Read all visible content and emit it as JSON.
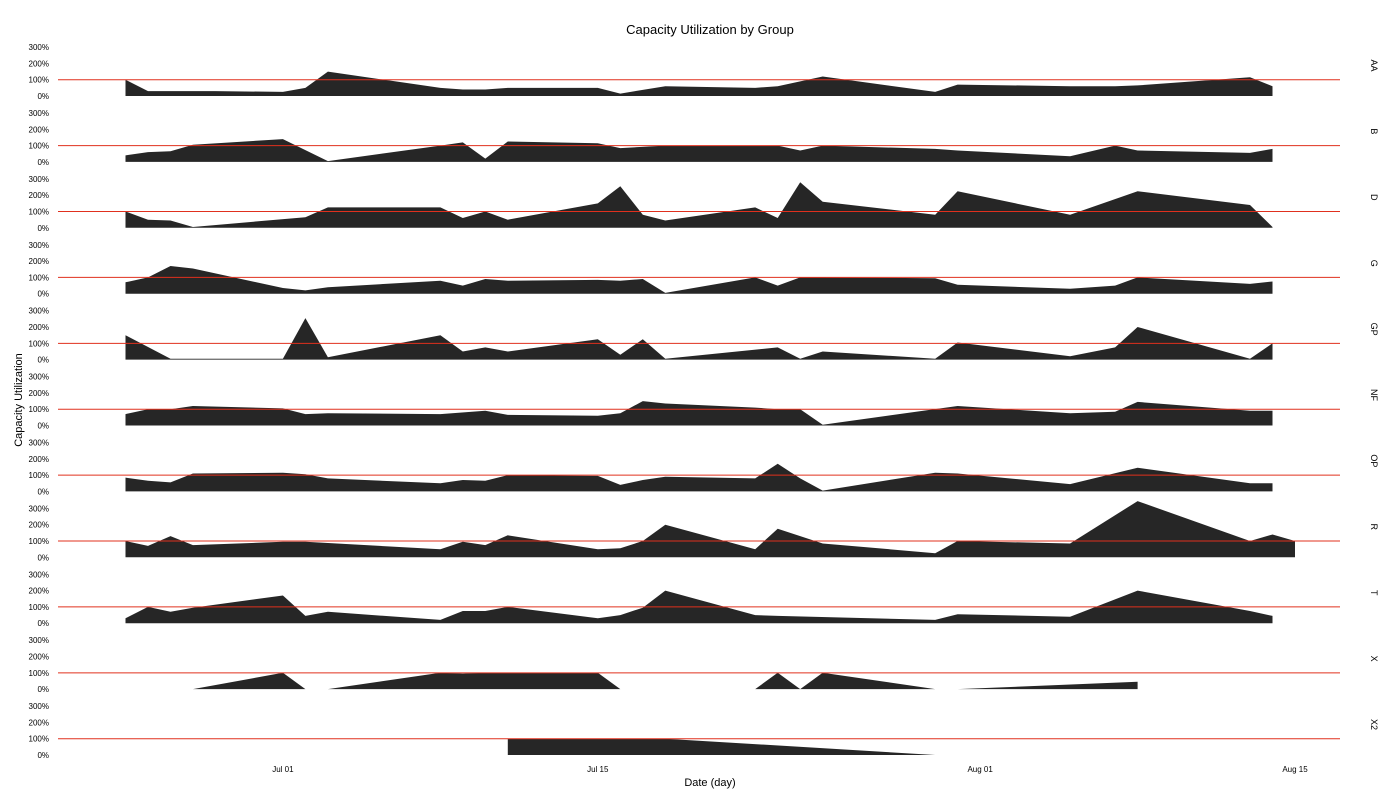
{
  "chart_data": {
    "type": "area",
    "title": "Capacity Utilization by Group",
    "xlabel": "Date (day)",
    "ylabel": "Capacity Utilization",
    "x_range": [
      "2021-06-21",
      "2021-08-17"
    ],
    "ylim": [
      0,
      350
    ],
    "y_ticks": [
      0,
      100,
      200,
      300
    ],
    "y_tick_labels": [
      "0%",
      "100%",
      "200%",
      "300%"
    ],
    "x_ticks": [
      "2021-07-01",
      "2021-07-15",
      "2021-08-01",
      "2021-08-15"
    ],
    "x_tick_labels": [
      "Jul 01",
      "Jul 15",
      "Aug 01",
      "Aug 15"
    ],
    "reference_line": 100,
    "colors": {
      "area": "#262626",
      "reference": "#e0301e"
    },
    "grid": false,
    "panels": [
      {
        "name": "AA",
        "points": [
          [
            "2021-06-24",
            100
          ],
          [
            "2021-06-25",
            30
          ],
          [
            "2021-06-28",
            30
          ],
          [
            "2021-07-01",
            25
          ],
          [
            "2021-07-02",
            50
          ],
          [
            "2021-07-03",
            150
          ],
          [
            "2021-07-08",
            50
          ],
          [
            "2021-07-09",
            40
          ],
          [
            "2021-07-10",
            40
          ],
          [
            "2021-07-11",
            50
          ],
          [
            "2021-07-15",
            50
          ],
          [
            "2021-07-16",
            15
          ],
          [
            "2021-07-18",
            60
          ],
          [
            "2021-07-22",
            50
          ],
          [
            "2021-07-23",
            60
          ],
          [
            "2021-07-25",
            120
          ],
          [
            "2021-07-30",
            25
          ],
          [
            "2021-07-31",
            70
          ],
          [
            "2021-08-05",
            60
          ],
          [
            "2021-08-07",
            60
          ],
          [
            "2021-08-08",
            65
          ],
          [
            "2021-08-13",
            115
          ],
          [
            "2021-08-14",
            60
          ]
        ]
      },
      {
        "name": "B",
        "points": [
          [
            "2021-06-24",
            40
          ],
          [
            "2021-06-25",
            60
          ],
          [
            "2021-06-26",
            65
          ],
          [
            "2021-06-27",
            105
          ],
          [
            "2021-07-01",
            140
          ],
          [
            "2021-07-03",
            5
          ],
          [
            "2021-07-08",
            100
          ],
          [
            "2021-07-09",
            120
          ],
          [
            "2021-07-10",
            20
          ],
          [
            "2021-07-11",
            125
          ],
          [
            "2021-07-15",
            115
          ],
          [
            "2021-07-16",
            85
          ],
          [
            "2021-07-18",
            100
          ],
          [
            "2021-07-23",
            100
          ],
          [
            "2021-07-24",
            70
          ],
          [
            "2021-07-25",
            100
          ],
          [
            "2021-07-30",
            80
          ],
          [
            "2021-07-31",
            70
          ],
          [
            "2021-08-05",
            35
          ],
          [
            "2021-08-07",
            100
          ],
          [
            "2021-08-08",
            70
          ],
          [
            "2021-08-13",
            55
          ],
          [
            "2021-08-14",
            80
          ]
        ]
      },
      {
        "name": "D",
        "points": [
          [
            "2021-06-24",
            100
          ],
          [
            "2021-06-25",
            50
          ],
          [
            "2021-06-26",
            45
          ],
          [
            "2021-06-27",
            5
          ],
          [
            "2021-07-02",
            65
          ],
          [
            "2021-07-03",
            125
          ],
          [
            "2021-07-08",
            125
          ],
          [
            "2021-07-09",
            60
          ],
          [
            "2021-07-10",
            100
          ],
          [
            "2021-07-11",
            50
          ],
          [
            "2021-07-15",
            150
          ],
          [
            "2021-07-16",
            255
          ],
          [
            "2021-07-17",
            80
          ],
          [
            "2021-07-18",
            45
          ],
          [
            "2021-07-22",
            125
          ],
          [
            "2021-07-23",
            60
          ],
          [
            "2021-07-24",
            280
          ],
          [
            "2021-07-25",
            160
          ],
          [
            "2021-07-30",
            80
          ],
          [
            "2021-07-31",
            225
          ],
          [
            "2021-08-05",
            80
          ],
          [
            "2021-08-08",
            225
          ],
          [
            "2021-08-13",
            140
          ],
          [
            "2021-08-14",
            5
          ]
        ]
      },
      {
        "name": "G",
        "points": [
          [
            "2021-06-24",
            70
          ],
          [
            "2021-06-25",
            100
          ],
          [
            "2021-06-26",
            170
          ],
          [
            "2021-06-27",
            155
          ],
          [
            "2021-07-01",
            35
          ],
          [
            "2021-07-02",
            20
          ],
          [
            "2021-07-03",
            40
          ],
          [
            "2021-07-08",
            80
          ],
          [
            "2021-07-09",
            50
          ],
          [
            "2021-07-10",
            90
          ],
          [
            "2021-07-11",
            80
          ],
          [
            "2021-07-15",
            85
          ],
          [
            "2021-07-16",
            80
          ],
          [
            "2021-07-17",
            90
          ],
          [
            "2021-07-18",
            5
          ],
          [
            "2021-07-22",
            100
          ],
          [
            "2021-07-23",
            50
          ],
          [
            "2021-07-24",
            100
          ],
          [
            "2021-07-30",
            95
          ],
          [
            "2021-07-31",
            55
          ],
          [
            "2021-08-05",
            30
          ],
          [
            "2021-08-07",
            50
          ],
          [
            "2021-08-08",
            100
          ],
          [
            "2021-08-13",
            60
          ],
          [
            "2021-08-14",
            75
          ]
        ]
      },
      {
        "name": "GP",
        "points": [
          [
            "2021-06-24",
            150
          ],
          [
            "2021-06-26",
            5
          ],
          [
            "2021-07-01",
            5
          ],
          [
            "2021-07-02",
            255
          ],
          [
            "2021-07-03",
            15
          ],
          [
            "2021-07-08",
            150
          ],
          [
            "2021-07-09",
            50
          ],
          [
            "2021-07-10",
            75
          ],
          [
            "2021-07-11",
            50
          ],
          [
            "2021-07-15",
            125
          ],
          [
            "2021-07-16",
            30
          ],
          [
            "2021-07-17",
            125
          ],
          [
            "2021-07-18",
            5
          ],
          [
            "2021-07-23",
            75
          ],
          [
            "2021-07-24",
            5
          ],
          [
            "2021-07-25",
            50
          ],
          [
            "2021-07-30",
            5
          ],
          [
            "2021-07-31",
            105
          ],
          [
            "2021-08-05",
            20
          ],
          [
            "2021-08-07",
            75
          ],
          [
            "2021-08-08",
            200
          ],
          [
            "2021-08-13",
            5
          ],
          [
            "2021-08-14",
            100
          ]
        ]
      },
      {
        "name": "NF",
        "points": [
          [
            "2021-06-24",
            70
          ],
          [
            "2021-06-25",
            100
          ],
          [
            "2021-06-26",
            100
          ],
          [
            "2021-06-27",
            120
          ],
          [
            "2021-07-01",
            105
          ],
          [
            "2021-07-02",
            70
          ],
          [
            "2021-07-03",
            75
          ],
          [
            "2021-07-08",
            70
          ],
          [
            "2021-07-10",
            90
          ],
          [
            "2021-07-11",
            65
          ],
          [
            "2021-07-15",
            60
          ],
          [
            "2021-07-16",
            75
          ],
          [
            "2021-07-17",
            150
          ],
          [
            "2021-07-18",
            135
          ],
          [
            "2021-07-22",
            110
          ],
          [
            "2021-07-23",
            100
          ],
          [
            "2021-07-24",
            100
          ],
          [
            "2021-07-25",
            5
          ],
          [
            "2021-07-31",
            120
          ],
          [
            "2021-08-05",
            75
          ],
          [
            "2021-08-07",
            85
          ],
          [
            "2021-08-08",
            145
          ],
          [
            "2021-08-13",
            90
          ],
          [
            "2021-08-14",
            90
          ]
        ]
      },
      {
        "name": "OP",
        "points": [
          [
            "2021-06-24",
            85
          ],
          [
            "2021-06-25",
            65
          ],
          [
            "2021-06-26",
            55
          ],
          [
            "2021-06-27",
            110
          ],
          [
            "2021-07-01",
            115
          ],
          [
            "2021-07-02",
            105
          ],
          [
            "2021-07-03",
            80
          ],
          [
            "2021-07-08",
            50
          ],
          [
            "2021-07-09",
            70
          ],
          [
            "2021-07-10",
            65
          ],
          [
            "2021-07-11",
            100
          ],
          [
            "2021-07-15",
            95
          ],
          [
            "2021-07-16",
            40
          ],
          [
            "2021-07-17",
            70
          ],
          [
            "2021-07-18",
            90
          ],
          [
            "2021-07-22",
            80
          ],
          [
            "2021-07-23",
            170
          ],
          [
            "2021-07-24",
            80
          ],
          [
            "2021-07-25",
            5
          ],
          [
            "2021-07-30",
            115
          ],
          [
            "2021-07-31",
            110
          ],
          [
            "2021-08-05",
            45
          ],
          [
            "2021-08-08",
            145
          ],
          [
            "2021-08-13",
            50
          ],
          [
            "2021-08-14",
            50
          ]
        ]
      },
      {
        "name": "R",
        "points": [
          [
            "2021-06-24",
            100
          ],
          [
            "2021-06-25",
            70
          ],
          [
            "2021-06-26",
            130
          ],
          [
            "2021-06-27",
            75
          ],
          [
            "2021-07-01",
            95
          ],
          [
            "2021-07-02",
            95
          ],
          [
            "2021-07-08",
            50
          ],
          [
            "2021-07-09",
            95
          ],
          [
            "2021-07-10",
            75
          ],
          [
            "2021-07-11",
            135
          ],
          [
            "2021-07-15",
            50
          ],
          [
            "2021-07-16",
            55
          ],
          [
            "2021-07-17",
            100
          ],
          [
            "2021-07-18",
            200
          ],
          [
            "2021-07-22",
            50
          ],
          [
            "2021-07-23",
            175
          ],
          [
            "2021-07-25",
            85
          ],
          [
            "2021-07-30",
            25
          ],
          [
            "2021-07-31",
            100
          ],
          [
            "2021-08-05",
            85
          ],
          [
            "2021-08-08",
            345
          ],
          [
            "2021-08-13",
            100
          ],
          [
            "2021-08-14",
            140
          ],
          [
            "2021-08-15",
            100
          ]
        ]
      },
      {
        "name": "T",
        "points": [
          [
            "2021-06-24",
            30
          ],
          [
            "2021-06-25",
            100
          ],
          [
            "2021-06-26",
            70
          ],
          [
            "2021-06-27",
            95
          ],
          [
            "2021-07-01",
            170
          ],
          [
            "2021-07-02",
            45
          ],
          [
            "2021-07-03",
            70
          ],
          [
            "2021-07-08",
            20
          ],
          [
            "2021-07-09",
            75
          ],
          [
            "2021-07-10",
            75
          ],
          [
            "2021-07-11",
            100
          ],
          [
            "2021-07-15",
            30
          ],
          [
            "2021-07-16",
            50
          ],
          [
            "2021-07-17",
            95
          ],
          [
            "2021-07-18",
            200
          ],
          [
            "2021-07-22",
            50
          ],
          [
            "2021-07-23",
            45
          ],
          [
            "2021-07-30",
            20
          ],
          [
            "2021-07-31",
            55
          ],
          [
            "2021-08-05",
            40
          ],
          [
            "2021-08-08",
            200
          ],
          [
            "2021-08-13",
            75
          ],
          [
            "2021-08-14",
            45
          ]
        ]
      },
      {
        "name": "X",
        "points": [
          [
            "2021-06-27",
            0
          ],
          [
            "2021-07-01",
            100
          ],
          [
            "2021-07-02",
            0
          ],
          [
            "2021-07-03",
            0
          ],
          [
            "2021-07-08",
            100
          ],
          [
            "2021-07-09",
            95
          ],
          [
            "2021-07-10",
            100
          ],
          [
            "2021-07-15",
            100
          ],
          [
            "2021-07-16",
            0
          ],
          [
            "2021-07-22",
            0
          ],
          [
            "2021-07-23",
            100
          ],
          [
            "2021-07-24",
            0
          ],
          [
            "2021-07-25",
            100
          ],
          [
            "2021-07-30",
            0
          ],
          [
            "2021-07-31",
            0
          ],
          [
            "2021-08-08",
            45
          ]
        ]
      },
      {
        "name": "X2",
        "points": [
          [
            "2021-07-11",
            100
          ],
          [
            "2021-07-18",
            100
          ],
          [
            "2021-07-30",
            0
          ]
        ]
      }
    ]
  }
}
